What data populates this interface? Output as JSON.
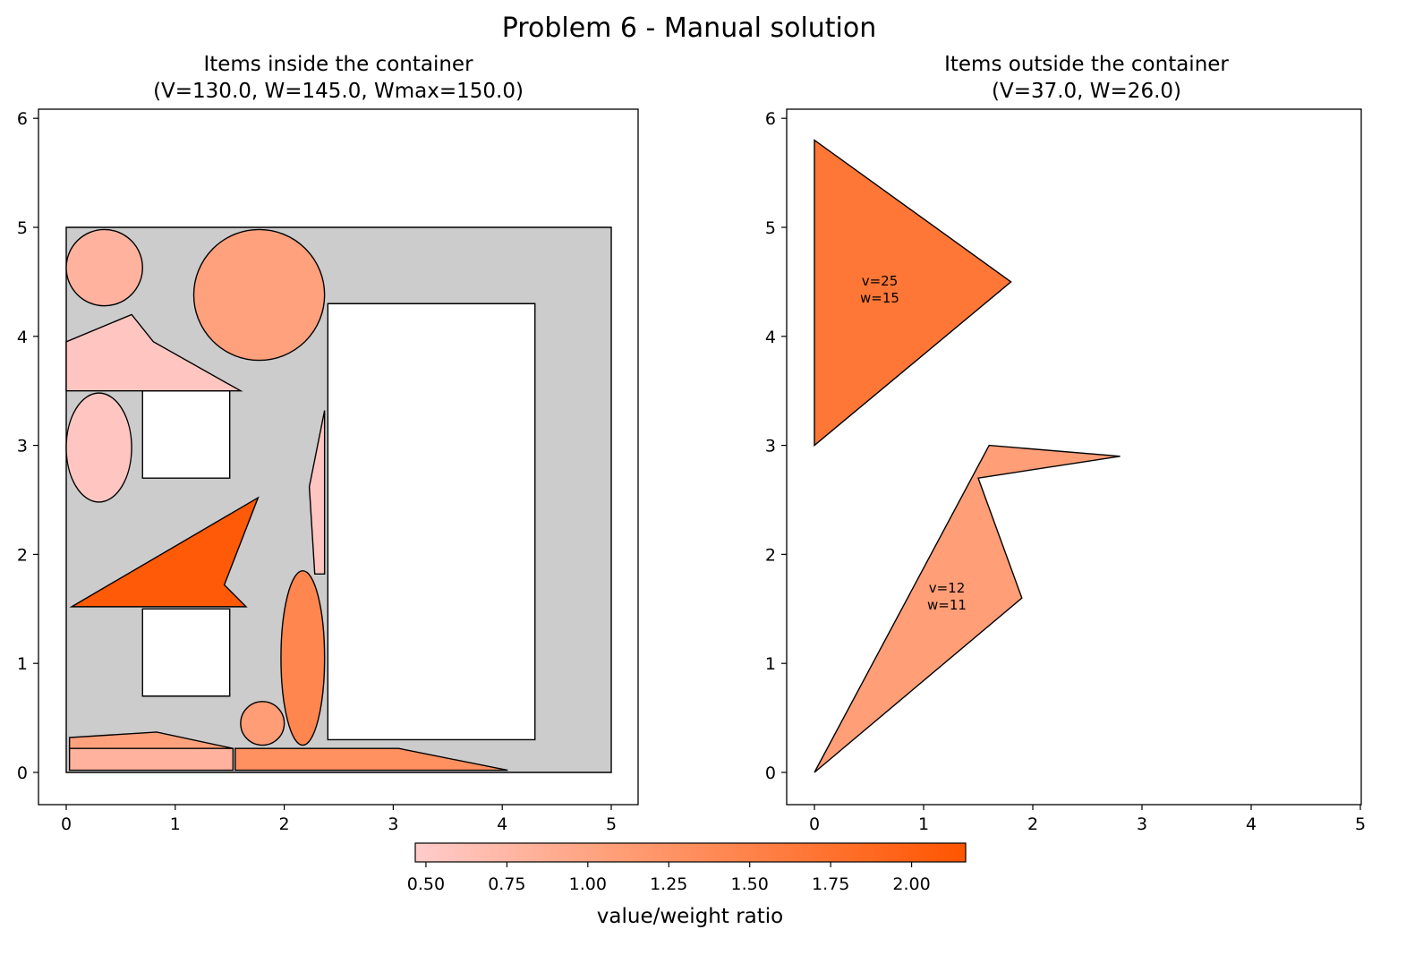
{
  "figure": {
    "title": "Problem 6 - Manual solution"
  },
  "panels": {
    "left": {
      "title_line1": "Items inside the container",
      "title_line2": "(V=130.0, W=145.0, Wmax=150.0)",
      "x_ticks": [
        "0",
        "1",
        "2",
        "3",
        "4",
        "5"
      ],
      "y_ticks": [
        "0",
        "1",
        "2",
        "3",
        "4",
        "5",
        "6"
      ]
    },
    "right": {
      "title_line1": "Items outside the container",
      "title_line2": "(V=37.0, W=26.0)",
      "x_ticks": [
        "0",
        "1",
        "2",
        "3",
        "4",
        "5"
      ],
      "y_ticks": [
        "0",
        "1",
        "2",
        "3",
        "4",
        "5",
        "6"
      ],
      "labels": [
        {
          "v": "v=25",
          "w": "w=15"
        },
        {
          "v": "v=12",
          "w": "w=11"
        }
      ]
    }
  },
  "colorbar": {
    "label": "value/weight ratio",
    "ticks": [
      "0.50",
      "0.75",
      "1.00",
      "1.25",
      "1.50",
      "1.75",
      "2.00"
    ],
    "tick_values": [
      0.5,
      0.75,
      1.0,
      1.25,
      1.5,
      1.75,
      2.0
    ],
    "range": [
      0.467,
      2.167
    ],
    "colors": [
      "#ffcccc",
      "#ffa07a",
      "#ff5500"
    ]
  },
  "colors": {
    "container": "#cccccc",
    "hole": "#ffffff",
    "stroke": "#000000"
  },
  "chart_data": {
    "type": "scatter",
    "axes_range": {
      "x": [
        -0.25,
        5.25
      ],
      "y": [
        -0.3,
        6.1
      ]
    },
    "container": {
      "points": [
        [
          0,
          0
        ],
        [
          5,
          0
        ],
        [
          5,
          5
        ],
        [
          0,
          5
        ]
      ]
    },
    "holes": [
      {
        "points": [
          [
            0.7,
            2.7
          ],
          [
            1.5,
            2.7
          ],
          [
            1.5,
            3.5
          ],
          [
            0.7,
            3.5
          ]
        ]
      },
      {
        "points": [
          [
            0.7,
            0.7
          ],
          [
            1.5,
            0.7
          ],
          [
            1.5,
            1.5
          ],
          [
            0.7,
            1.5
          ]
        ]
      },
      {
        "points": [
          [
            2.4,
            0.3
          ],
          [
            4.3,
            0.3
          ],
          [
            4.3,
            4.3
          ],
          [
            2.4,
            4.3
          ]
        ]
      }
    ],
    "items_inside": [
      {
        "shape": "circle",
        "center": [
          0.35,
          4.63
        ],
        "r": 0.35,
        "ratio": 0.8
      },
      {
        "shape": "circle",
        "center": [
          1.77,
          4.38
        ],
        "r": 0.6,
        "ratio": 1.05
      },
      {
        "shape": "polygon",
        "points": [
          [
            0,
            3.5
          ],
          [
            1.6,
            3.5
          ],
          [
            0.8,
            3.95
          ],
          [
            0.6,
            4.2
          ],
          [
            0,
            3.95
          ]
        ],
        "ratio": 0.55
      },
      {
        "shape": "ellipse",
        "center": [
          0.3,
          2.98
        ],
        "rx": 0.3,
        "ry": 0.5,
        "ratio": 0.55
      },
      {
        "shape": "polygon",
        "points": [
          [
            0.05,
            1.52
          ],
          [
            1.76,
            2.52
          ],
          [
            1.45,
            1.72
          ],
          [
            1.65,
            1.52
          ]
        ],
        "ratio": 2.1
      },
      {
        "shape": "polygon",
        "points": [
          [
            2.28,
            1.82
          ],
          [
            2.37,
            1.82
          ],
          [
            2.37,
            3.32
          ],
          [
            2.23,
            2.62
          ]
        ],
        "ratio": 0.55
      },
      {
        "shape": "ellipse",
        "center": [
          2.17,
          1.05
        ],
        "rx": 0.2,
        "ry": 0.8,
        "ratio": 1.45
      },
      {
        "shape": "circle",
        "center": [
          1.8,
          0.45
        ],
        "r": 0.2,
        "ratio": 1.1
      },
      {
        "shape": "polygon",
        "points": [
          [
            0.03,
            0.22
          ],
          [
            1.53,
            0.22
          ],
          [
            0.83,
            0.37
          ],
          [
            0.03,
            0.32
          ]
        ],
        "ratio": 1.05
      },
      {
        "shape": "polygon",
        "points": [
          [
            0.03,
            0.02
          ],
          [
            1.53,
            0.02
          ],
          [
            1.53,
            0.22
          ],
          [
            0.03,
            0.22
          ]
        ],
        "ratio": 0.8
      },
      {
        "shape": "polygon",
        "points": [
          [
            1.55,
            0.02
          ],
          [
            4.05,
            0.02
          ],
          [
            3.05,
            0.22
          ],
          [
            1.55,
            0.22
          ]
        ],
        "ratio": 1.3
      }
    ],
    "items_outside": [
      {
        "shape": "polygon",
        "points": [
          [
            0,
            3
          ],
          [
            1.8,
            4.5
          ],
          [
            0,
            5.8
          ]
        ],
        "value": 25,
        "weight": 15,
        "ratio": 1.67,
        "label_at": [
          0.6,
          4.4
        ]
      },
      {
        "shape": "polygon",
        "points": [
          [
            0,
            0
          ],
          [
            1.9,
            1.6
          ],
          [
            1.5,
            2.7
          ],
          [
            2.8,
            2.9
          ],
          [
            1.6,
            3.0
          ]
        ],
        "value": 12,
        "weight": 11,
        "ratio": 1.09,
        "label_at": [
          1.2,
          1.6
        ]
      }
    ]
  }
}
